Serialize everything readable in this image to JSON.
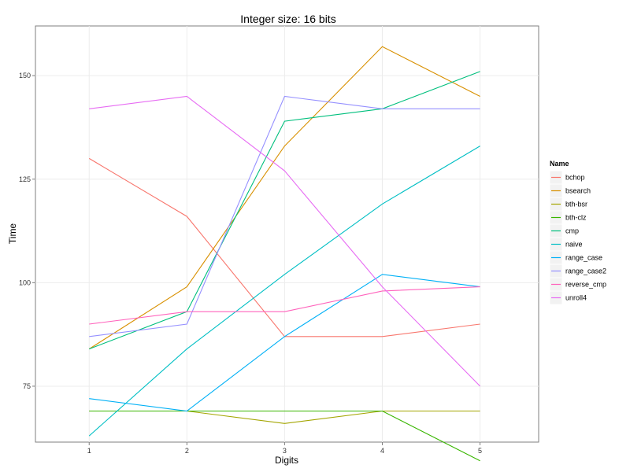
{
  "chart_data": {
    "type": "line",
    "title": "Integer size: 16 bits",
    "xlabel": "Digits",
    "ylabel": "Time",
    "x": [
      1,
      2,
      3,
      4,
      5
    ],
    "xlim": [
      0.45,
      5.6
    ],
    "ylim": [
      61.5,
      162
    ],
    "xticks": [
      1,
      2,
      3,
      4,
      5
    ],
    "yticks": [
      75,
      100,
      125,
      150
    ],
    "grid": true,
    "legend_title": "Name",
    "legend_position": "right",
    "series": [
      {
        "name": "bchop",
        "color": "#F8766D",
        "values": [
          130,
          116,
          87,
          87,
          90
        ]
      },
      {
        "name": "bsearch",
        "color": "#D89000",
        "values": [
          84,
          99,
          133,
          157,
          145
        ]
      },
      {
        "name": "bth-bsr",
        "color": "#A3A500",
        "values": [
          69,
          69,
          66,
          69,
          69
        ]
      },
      {
        "name": "bth-clz",
        "color": "#39B600",
        "values": [
          69,
          69,
          69,
          69,
          57
        ]
      },
      {
        "name": "cmp",
        "color": "#00BF7D",
        "values": [
          84,
          93,
          139,
          142,
          151
        ]
      },
      {
        "name": "naive",
        "color": "#00BFC4",
        "values": [
          63,
          84,
          102,
          119,
          133
        ]
      },
      {
        "name": "range_case",
        "color": "#00B0F6",
        "values": [
          72,
          69,
          87,
          102,
          99
        ]
      },
      {
        "name": "range_case2",
        "color": "#9590FF",
        "values": [
          87,
          90,
          145,
          142,
          142
        ]
      },
      {
        "name": "reverse_cmp",
        "color": "#FF62BC",
        "values": [
          90,
          93,
          93,
          98,
          99
        ]
      },
      {
        "name": "unroll4",
        "color": "#E76BF3",
        "values": [
          142,
          145,
          127,
          99,
          75
        ]
      }
    ]
  }
}
